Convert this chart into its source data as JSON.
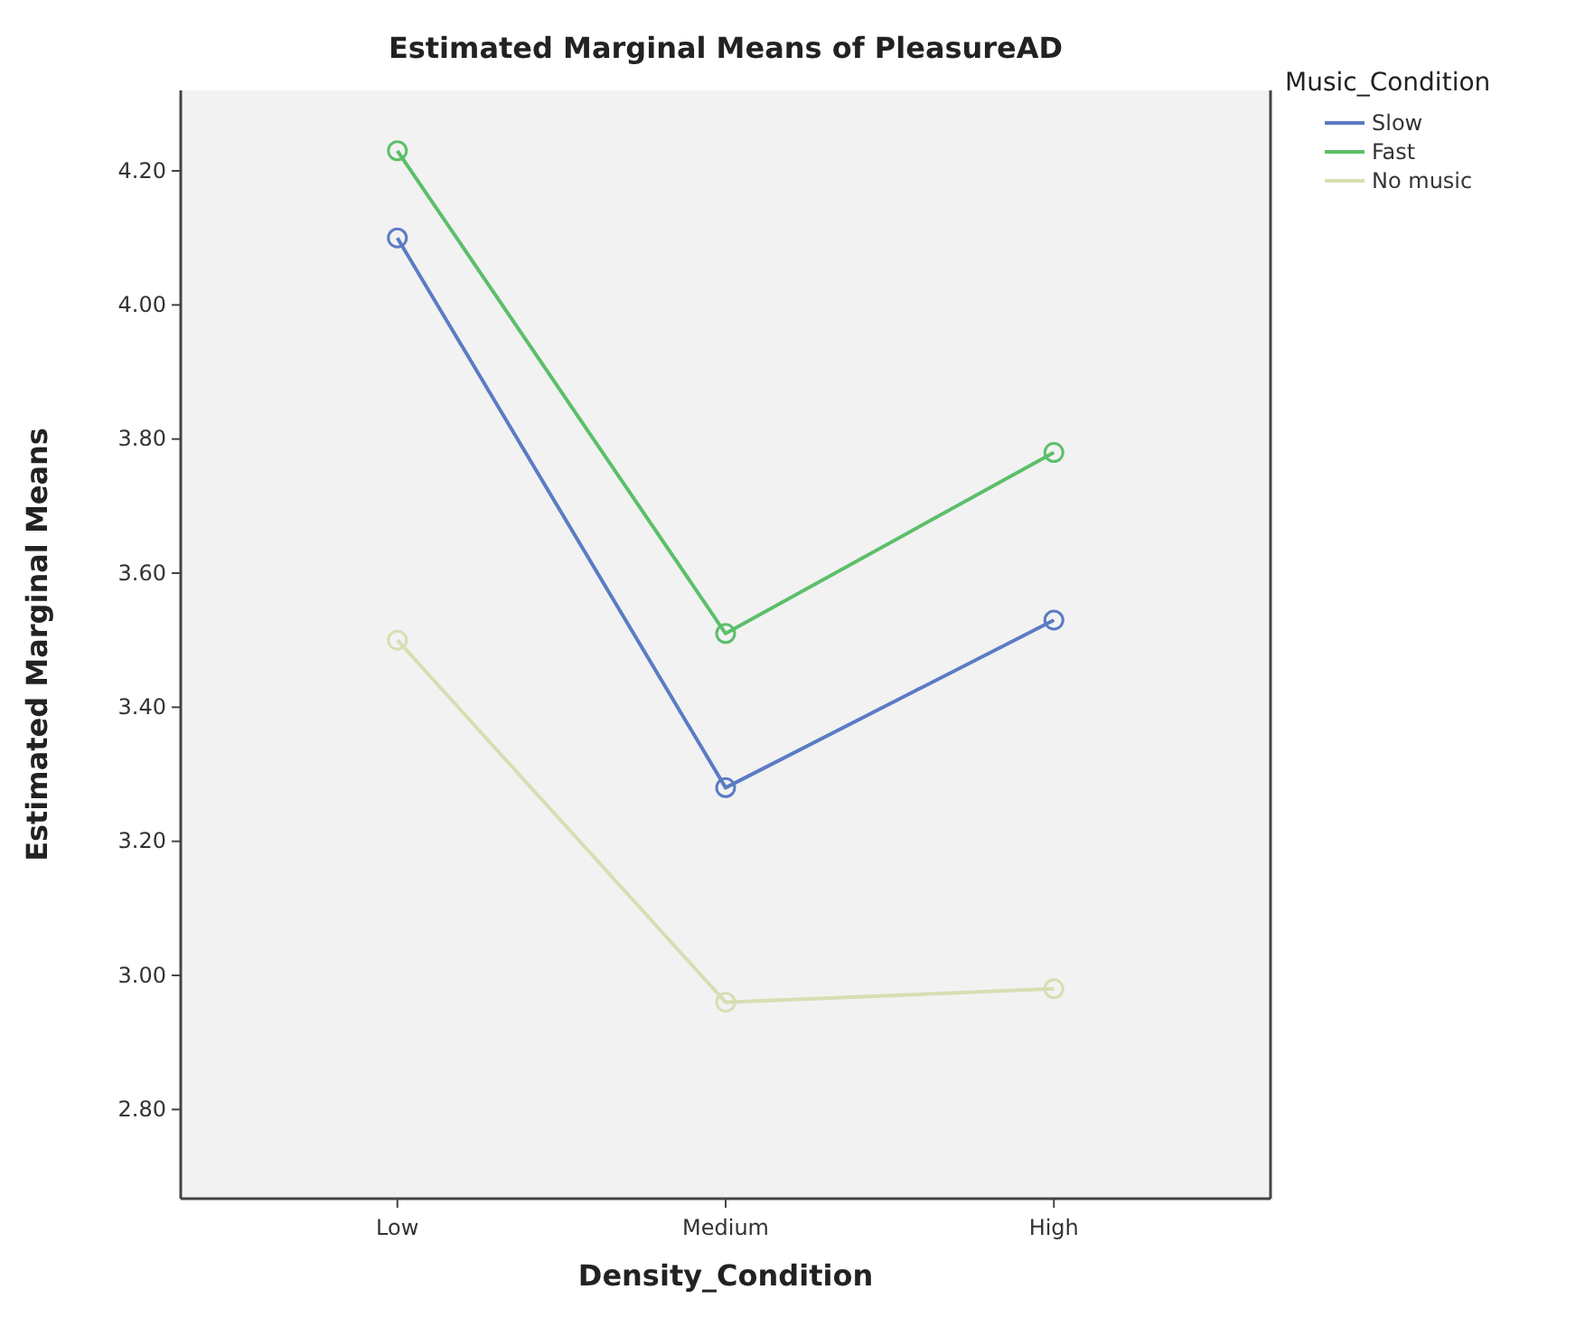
{
  "chart_data": {
    "type": "line",
    "title": "Estimated Marginal Means of PleasureAD",
    "xlabel": "Density_Condition",
    "ylabel": "Estimated Marginal Means",
    "legend_title": "Music_Condition",
    "categories": [
      "Low",
      "Medium",
      "High"
    ],
    "series": [
      {
        "name": "Slow",
        "color": "#5b7bc4",
        "values": [
          4.1,
          3.28,
          3.53
        ]
      },
      {
        "name": "Fast",
        "color": "#5cbf6a",
        "values": [
          4.23,
          3.51,
          3.78
        ]
      },
      {
        "name": "No music",
        "color": "#d9ddb2",
        "values": [
          3.5,
          2.96,
          2.98
        ]
      }
    ],
    "ylim": [
      2.667,
      4.32
    ],
    "yticks": [
      {
        "value": 2.8,
        "label": "2.80"
      },
      {
        "value": 3.0,
        "label": "3.00"
      },
      {
        "value": 3.2,
        "label": "3.20"
      },
      {
        "value": 3.4,
        "label": "3.40"
      },
      {
        "value": 3.6,
        "label": "3.60"
      },
      {
        "value": 3.8,
        "label": "3.80"
      },
      {
        "value": 4.0,
        "label": "4.00"
      },
      {
        "value": 4.2,
        "label": "4.20"
      }
    ],
    "grid": false,
    "legend": "top right",
    "marker": "circle",
    "line_style": "solid"
  }
}
